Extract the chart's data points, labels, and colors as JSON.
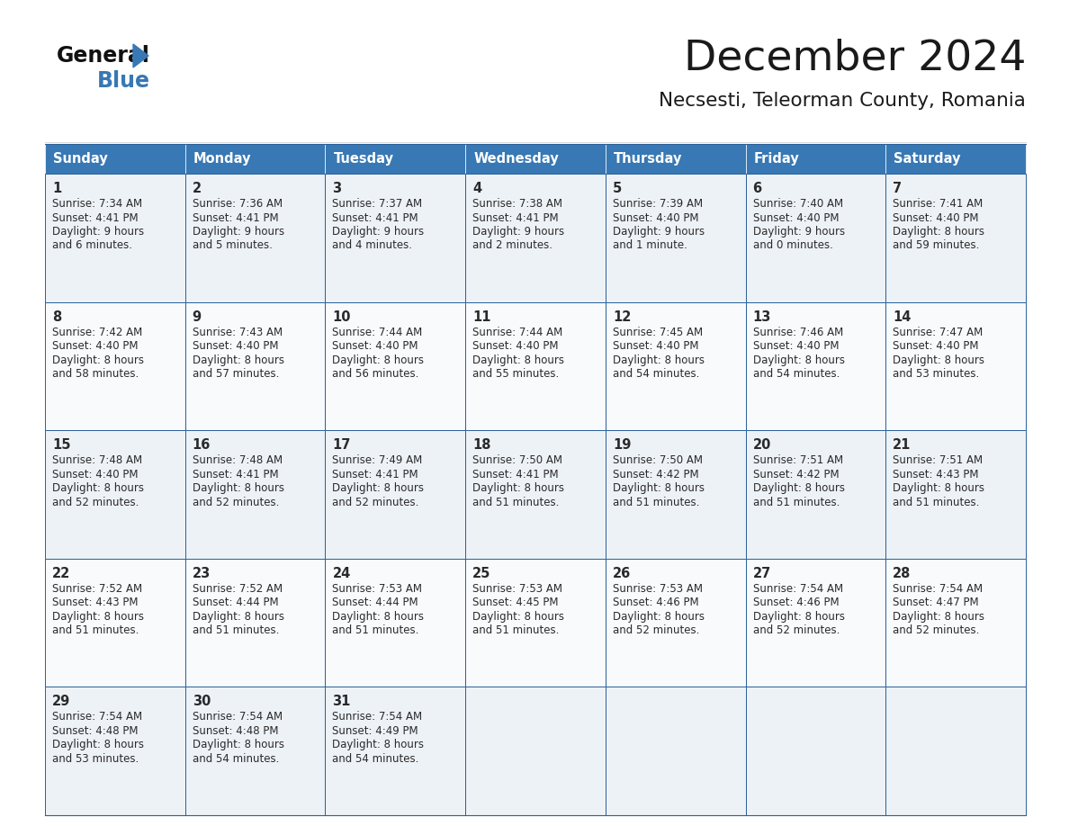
{
  "title": "December 2024",
  "subtitle": "Necsesti, Teleorman County, Romania",
  "header_bg_color": "#3878b4",
  "header_text_color": "#ffffff",
  "cell_bg_color_light": "#edf2f7",
  "cell_bg_color_white": "#f8fafc",
  "last_row_bg": "#edf2f7",
  "border_color": "#2a6099",
  "text_color_dark": "#1a1a1a",
  "text_color_cell": "#2a2a2a",
  "day_names": [
    "Sunday",
    "Monday",
    "Tuesday",
    "Wednesday",
    "Thursday",
    "Friday",
    "Saturday"
  ],
  "days": [
    {
      "day": 1,
      "col": 0,
      "row": 0,
      "sunrise": "7:34 AM",
      "sunset": "4:41 PM",
      "daylight_hours": 9,
      "daylight_minutes": 6
    },
    {
      "day": 2,
      "col": 1,
      "row": 0,
      "sunrise": "7:36 AM",
      "sunset": "4:41 PM",
      "daylight_hours": 9,
      "daylight_minutes": 5
    },
    {
      "day": 3,
      "col": 2,
      "row": 0,
      "sunrise": "7:37 AM",
      "sunset": "4:41 PM",
      "daylight_hours": 9,
      "daylight_minutes": 4
    },
    {
      "day": 4,
      "col": 3,
      "row": 0,
      "sunrise": "7:38 AM",
      "sunset": "4:41 PM",
      "daylight_hours": 9,
      "daylight_minutes": 2
    },
    {
      "day": 5,
      "col": 4,
      "row": 0,
      "sunrise": "7:39 AM",
      "sunset": "4:40 PM",
      "daylight_hours": 9,
      "daylight_minutes": 1
    },
    {
      "day": 6,
      "col": 5,
      "row": 0,
      "sunrise": "7:40 AM",
      "sunset": "4:40 PM",
      "daylight_hours": 9,
      "daylight_minutes": 0
    },
    {
      "day": 7,
      "col": 6,
      "row": 0,
      "sunrise": "7:41 AM",
      "sunset": "4:40 PM",
      "daylight_hours": 8,
      "daylight_minutes": 59
    },
    {
      "day": 8,
      "col": 0,
      "row": 1,
      "sunrise": "7:42 AM",
      "sunset": "4:40 PM",
      "daylight_hours": 8,
      "daylight_minutes": 58
    },
    {
      "day": 9,
      "col": 1,
      "row": 1,
      "sunrise": "7:43 AM",
      "sunset": "4:40 PM",
      "daylight_hours": 8,
      "daylight_minutes": 57
    },
    {
      "day": 10,
      "col": 2,
      "row": 1,
      "sunrise": "7:44 AM",
      "sunset": "4:40 PM",
      "daylight_hours": 8,
      "daylight_minutes": 56
    },
    {
      "day": 11,
      "col": 3,
      "row": 1,
      "sunrise": "7:44 AM",
      "sunset": "4:40 PM",
      "daylight_hours": 8,
      "daylight_minutes": 55
    },
    {
      "day": 12,
      "col": 4,
      "row": 1,
      "sunrise": "7:45 AM",
      "sunset": "4:40 PM",
      "daylight_hours": 8,
      "daylight_minutes": 54
    },
    {
      "day": 13,
      "col": 5,
      "row": 1,
      "sunrise": "7:46 AM",
      "sunset": "4:40 PM",
      "daylight_hours": 8,
      "daylight_minutes": 54
    },
    {
      "day": 14,
      "col": 6,
      "row": 1,
      "sunrise": "7:47 AM",
      "sunset": "4:40 PM",
      "daylight_hours": 8,
      "daylight_minutes": 53
    },
    {
      "day": 15,
      "col": 0,
      "row": 2,
      "sunrise": "7:48 AM",
      "sunset": "4:40 PM",
      "daylight_hours": 8,
      "daylight_minutes": 52
    },
    {
      "day": 16,
      "col": 1,
      "row": 2,
      "sunrise": "7:48 AM",
      "sunset": "4:41 PM",
      "daylight_hours": 8,
      "daylight_minutes": 52
    },
    {
      "day": 17,
      "col": 2,
      "row": 2,
      "sunrise": "7:49 AM",
      "sunset": "4:41 PM",
      "daylight_hours": 8,
      "daylight_minutes": 52
    },
    {
      "day": 18,
      "col": 3,
      "row": 2,
      "sunrise": "7:50 AM",
      "sunset": "4:41 PM",
      "daylight_hours": 8,
      "daylight_minutes": 51
    },
    {
      "day": 19,
      "col": 4,
      "row": 2,
      "sunrise": "7:50 AM",
      "sunset": "4:42 PM",
      "daylight_hours": 8,
      "daylight_minutes": 51
    },
    {
      "day": 20,
      "col": 5,
      "row": 2,
      "sunrise": "7:51 AM",
      "sunset": "4:42 PM",
      "daylight_hours": 8,
      "daylight_minutes": 51
    },
    {
      "day": 21,
      "col": 6,
      "row": 2,
      "sunrise": "7:51 AM",
      "sunset": "4:43 PM",
      "daylight_hours": 8,
      "daylight_minutes": 51
    },
    {
      "day": 22,
      "col": 0,
      "row": 3,
      "sunrise": "7:52 AM",
      "sunset": "4:43 PM",
      "daylight_hours": 8,
      "daylight_minutes": 51
    },
    {
      "day": 23,
      "col": 1,
      "row": 3,
      "sunrise": "7:52 AM",
      "sunset": "4:44 PM",
      "daylight_hours": 8,
      "daylight_minutes": 51
    },
    {
      "day": 24,
      "col": 2,
      "row": 3,
      "sunrise": "7:53 AM",
      "sunset": "4:44 PM",
      "daylight_hours": 8,
      "daylight_minutes": 51
    },
    {
      "day": 25,
      "col": 3,
      "row": 3,
      "sunrise": "7:53 AM",
      "sunset": "4:45 PM",
      "daylight_hours": 8,
      "daylight_minutes": 51
    },
    {
      "day": 26,
      "col": 4,
      "row": 3,
      "sunrise": "7:53 AM",
      "sunset": "4:46 PM",
      "daylight_hours": 8,
      "daylight_minutes": 52
    },
    {
      "day": 27,
      "col": 5,
      "row": 3,
      "sunrise": "7:54 AM",
      "sunset": "4:46 PM",
      "daylight_hours": 8,
      "daylight_minutes": 52
    },
    {
      "day": 28,
      "col": 6,
      "row": 3,
      "sunrise": "7:54 AM",
      "sunset": "4:47 PM",
      "daylight_hours": 8,
      "daylight_minutes": 52
    },
    {
      "day": 29,
      "col": 0,
      "row": 4,
      "sunrise": "7:54 AM",
      "sunset": "4:48 PM",
      "daylight_hours": 8,
      "daylight_minutes": 53
    },
    {
      "day": 30,
      "col": 1,
      "row": 4,
      "sunrise": "7:54 AM",
      "sunset": "4:48 PM",
      "daylight_hours": 8,
      "daylight_minutes": 54
    },
    {
      "day": 31,
      "col": 2,
      "row": 4,
      "sunrise": "7:54 AM",
      "sunset": "4:49 PM",
      "daylight_hours": 8,
      "daylight_minutes": 54
    }
  ],
  "num_rows": 5,
  "num_cols": 7,
  "fig_width": 11.88,
  "fig_height": 9.18,
  "dpi": 100
}
